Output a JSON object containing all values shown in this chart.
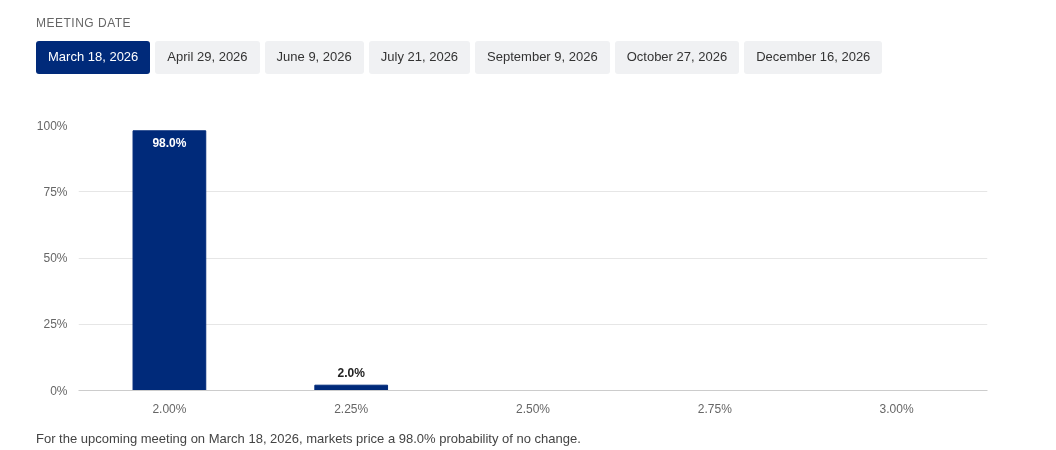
{
  "chart_data": {
    "type": "bar",
    "title": "MEETING DATE",
    "categories": [
      "2.00%",
      "2.25%",
      "2.50%",
      "2.75%",
      "3.00%"
    ],
    "values": [
      98.0,
      2.0,
      0,
      0,
      0
    ],
    "value_labels": [
      "98.0%",
      "2.0%",
      null,
      null,
      null
    ],
    "color": "#002a7a",
    "ylim": [
      0,
      100
    ],
    "yticks": [
      {
        "value": 0,
        "label": "0%"
      },
      {
        "value": 25,
        "label": "25%"
      },
      {
        "value": 50,
        "label": "50%"
      },
      {
        "value": 75,
        "label": "75%"
      },
      {
        "value": 100,
        "label": "100%"
      }
    ],
    "grid": "y",
    "annotations": [
      "March 18, 2026",
      "April 29, 2026",
      "June 9, 2026",
      "July 21, 2026",
      "September 9, 2026",
      "October 27, 2026",
      "December 16, 2026",
      "For the upcoming meeting on March 18, 2026, markets price a 98.0% probability of no change."
    ]
  }
}
